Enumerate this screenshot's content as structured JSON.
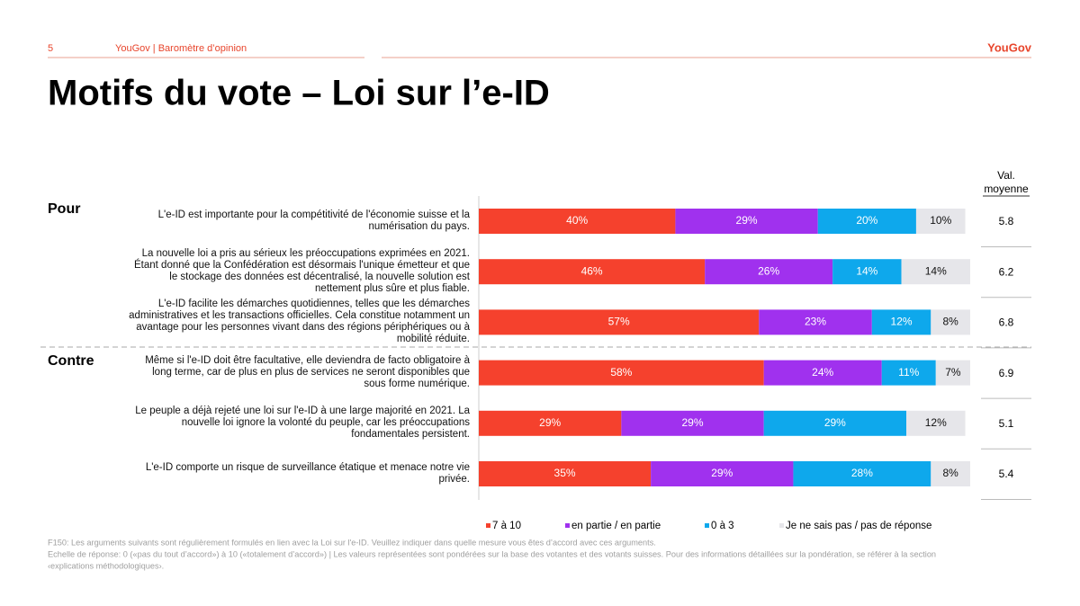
{
  "header": {
    "page_number": "5",
    "source": "YouGov | Baromètre d’opinion",
    "logo": "YouGov"
  },
  "chart_data": {
    "type": "stacked_barh",
    "title": "Motifs du vote – Loi sur l’e-ID",
    "groups": [
      "Pour",
      "Contre"
    ],
    "categories": [
      "L'e-ID est importante pour la compétitivité de l'économie suisse et la numérisation du pays.",
      "La nouvelle loi a pris au sérieux les préoccupations exprimées en 2021. Étant donné que la Confédération est désormais l'unique émetteur et que le stockage des données est décentralisé, la nouvelle solution est nettement plus sûre et plus fiable.",
      "L'e-ID facilite les démarches quotidiennes, telles que les démarches administratives et les transactions officielles. Cela constitue notamment un avantage pour les personnes vivant dans des régions périphériques ou à mobilité réduite.",
      "Même si l'e-ID doit être facultative, elle deviendra de facto obligatoire à long terme, car de plus en plus de services ne seront disponibles que sous forme numérique.",
      "Le peuple a déjà rejeté une loi sur l'e-ID à une large majorité en 2021. La nouvelle loi ignore la volonté du peuple, car les préoccupations fondamentales persistent.",
      "L'e-ID comporte un risque de surveillance étatique et menace notre vie privée."
    ],
    "xlim": [
      0,
      100
    ],
    "series": [
      {
        "name": "7 à 10",
        "color": "#f5412d",
        "values": [
          40,
          46,
          57,
          58,
          29,
          35
        ],
        "value_labels": [
          "40%",
          "46%",
          "57%",
          "58%",
          "29%",
          "35%"
        ]
      },
      {
        "name": "en partie / en partie",
        "color": "#a031ee",
        "values": [
          29,
          26,
          23,
          24,
          29,
          29
        ],
        "value_labels": [
          "29%",
          "26%",
          "23%",
          "24%",
          "29%",
          "29%"
        ]
      },
      {
        "name": "0 à 3",
        "color": "#0ea8ec",
        "values": [
          20,
          14,
          12,
          11,
          29,
          28
        ],
        "value_labels": [
          "20%",
          "14%",
          "12%",
          "11%",
          "29%",
          "28%"
        ]
      },
      {
        "name": "Je ne sais pas / pas de réponse",
        "color": "#e6e6ea",
        "values": [
          10,
          14,
          8,
          7,
          12,
          8
        ],
        "value_labels": [
          "10%",
          "14%",
          "8%",
          "7%",
          "12%",
          "8%"
        ]
      }
    ],
    "mean_header": [
      "Val.",
      "moyenne"
    ],
    "mean_values": [
      5.8,
      6.2,
      6.8,
      6.9,
      5.1,
      5.4
    ],
    "notes": [
      "F150: Les arguments suivants sont régulièrement formulés en lien avec la Loi sur l'e-ID. Veuillez indiquer dans quelle mesure vous êtes d’accord avec ces arguments.",
      "Echelle de réponse: 0 («pas du tout d’accord») à 10 («totalement d’accord») | Les valeurs représentées sont pondérées sur la base des votantes et des votants suisses. Pour des informations détaillées sur la pondération, se référer à la section",
      "‹explications méthodologiques›."
    ]
  }
}
